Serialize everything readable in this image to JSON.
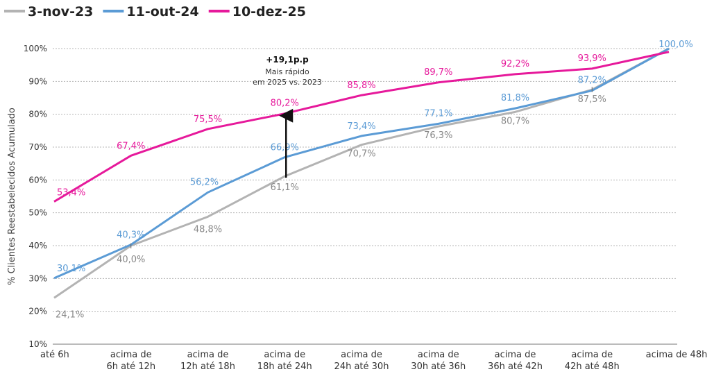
{
  "chart_data": {
    "type": "line",
    "title": "",
    "xlabel": "",
    "ylabel": "% Clientes Reestabelecidos Acumulado",
    "ylim": [
      10,
      100
    ],
    "yticks": [
      "10%",
      "20%",
      "30%",
      "40%",
      "50%",
      "60%",
      "70%",
      "80%",
      "90%",
      "100%"
    ],
    "grid": true,
    "legend_position": "top-left",
    "categories": [
      [
        "até 6h"
      ],
      [
        "acima de",
        "6h até 12h"
      ],
      [
        "acima de",
        "12h até 18h"
      ],
      [
        "acima de",
        "18h até 24h"
      ],
      [
        "acima de",
        "24h até 30h"
      ],
      [
        "acima de",
        "30h até 36h"
      ],
      [
        "acima de",
        "36h até 42h"
      ],
      [
        "acima de",
        "42h até 48h"
      ],
      [
        "acima de 48h"
      ]
    ],
    "series": [
      {
        "name": "3-nov-23",
        "color": "#b3b3b3",
        "values": [
          24.1,
          40.0,
          48.8,
          61.1,
          70.7,
          76.3,
          80.7,
          87.5,
          100.0
        ],
        "labels": [
          "24,1%",
          "40,0%",
          "48,8%",
          "61,1%",
          "70,7%",
          "76,3%",
          "80,7%",
          "87,5%",
          ""
        ]
      },
      {
        "name": "11-out-24",
        "color": "#5b9bd5",
        "values": [
          30.1,
          40.3,
          56.2,
          66.9,
          73.4,
          77.1,
          81.8,
          87.2,
          100.0
        ],
        "labels": [
          "30,1%",
          "40,3%",
          "56,2%",
          "66,9%",
          "73,4%",
          "77,1%",
          "81,8%",
          "87,2%",
          "100,0%"
        ]
      },
      {
        "name": "10-dez-25",
        "color": "#e6199b",
        "values": [
          53.4,
          67.4,
          75.5,
          80.2,
          85.8,
          89.7,
          92.2,
          93.9,
          99.0
        ],
        "labels": [
          "53,4%",
          "67,4%",
          "75,5%",
          "80,2%",
          "85,8%",
          "89,7%",
          "92,2%",
          "93,9%",
          ""
        ]
      }
    ],
    "annotation": {
      "category_index": 3,
      "from": 61.1,
      "to": 80.2,
      "title": "+19,1p.p",
      "lines": [
        "Mais rápido",
        "em 2025 vs. 2023"
      ]
    }
  }
}
